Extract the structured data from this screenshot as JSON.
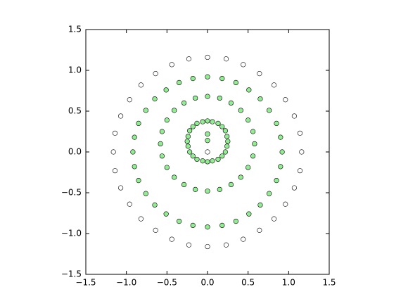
{
  "chart_data": {
    "type": "scatter",
    "xlim": [
      -1.5,
      1.5
    ],
    "ylim": [
      -1.5,
      1.5
    ],
    "xticks": [
      {
        "value": -1.5,
        "label": "−1.5"
      },
      {
        "value": -1.0,
        "label": "−1.0"
      },
      {
        "value": -0.5,
        "label": "−0.5"
      },
      {
        "value": 0,
        "label": "0.0"
      },
      0.5,
      {
        "value": 1.0,
        "label": "1.0"
      },
      1.5
    ],
    "yticks": [
      {
        "value": -1.5,
        "label": "−1.5"
      },
      {
        "value": -1.0,
        "label": "−1.0"
      },
      {
        "value": -0.5,
        "label": "−0.5"
      },
      {
        "value": 0,
        "label": "0.0"
      },
      0.5,
      {
        "value": 1.0,
        "label": "1.0"
      },
      1.5
    ],
    "series": [
      {
        "color": "#ffffff",
        "x": [
          1.16,
          1.14,
          1.07,
          0.96,
          0.82,
          0.64,
          0.44,
          0.23,
          0,
          -0.23,
          -0.44,
          -0.64,
          -0.82,
          -0.96,
          -1.07,
          -1.14,
          -1.16,
          -1.14,
          -1.07,
          -0.96,
          -0.82,
          -0.64,
          -0.44,
          -0.23,
          0,
          0.23,
          0.44,
          0.64,
          0.82,
          0.96,
          1.07,
          1.14
        ],
        "y": [
          0,
          0.23,
          0.44,
          0.64,
          0.82,
          0.96,
          1.07,
          1.14,
          1.16,
          1.14,
          1.07,
          0.96,
          0.82,
          0.64,
          0.44,
          0.23,
          0,
          -0.23,
          -0.44,
          -0.64,
          -0.82,
          -0.96,
          -1.07,
          -1.14,
          -1.16,
          -1.14,
          -1.07,
          -0.96,
          -0.82,
          -0.64,
          -0.44,
          -0.23
        ]
      },
      {
        "color": "#90ee90",
        "x": [
          0.92,
          0.9,
          0.85,
          0.76,
          0.65,
          0.51,
          0.35,
          0.18,
          0,
          -0.18,
          -0.35,
          -0.51,
          -0.65,
          -0.76,
          -0.85,
          -0.9,
          -0.92,
          -0.9,
          -0.85,
          -0.76,
          -0.65,
          -0.51,
          -0.35,
          -0.18,
          0,
          0.18,
          0.35,
          0.51,
          0.65,
          0.76,
          0.85,
          0.9
        ],
        "y": [
          0,
          0.18,
          0.35,
          0.51,
          0.65,
          0.76,
          0.85,
          0.9,
          0.92,
          0.9,
          0.85,
          0.76,
          0.65,
          0.51,
          0.35,
          0.18,
          0,
          -0.18,
          -0.35,
          -0.51,
          -0.65,
          -0.76,
          -0.85,
          -0.9,
          -0.92,
          -0.9,
          -0.85,
          -0.76,
          -0.65,
          -0.51,
          -0.35,
          -0.18
        ]
      },
      {
        "color": "#90ee90",
        "x": [
          0.58,
          0.56,
          0.5,
          0.41,
          0.29,
          0.15,
          0,
          -0.15,
          -0.29,
          -0.41,
          -0.5,
          -0.56,
          -0.58,
          -0.56,
          -0.5,
          -0.41,
          -0.29,
          -0.15,
          0,
          0.15,
          0.29,
          0.41,
          0.5,
          0.56
        ],
        "y": [
          0.1,
          0.25,
          0.39,
          0.51,
          0.6,
          0.66,
          0.68,
          0.66,
          0.6,
          0.51,
          0.39,
          0.25,
          0.1,
          -0.05,
          -0.19,
          -0.31,
          -0.4,
          -0.46,
          -0.48,
          -0.46,
          -0.4,
          -0.31,
          -0.19,
          -0.05
        ]
      },
      {
        "color": "#90ee90",
        "x": [
          0.25,
          0.24,
          0.22,
          0.18,
          0.13,
          0.06,
          0,
          -0.06,
          -0.13,
          -0.18,
          -0.22,
          -0.24,
          -0.25,
          -0.24,
          -0.22,
          -0.18,
          -0.13,
          -0.06,
          0,
          0.06,
          0.13,
          0.18,
          0.22,
          0.24,
          0,
          0
        ],
        "y": [
          0.13,
          0.19,
          0.26,
          0.31,
          0.35,
          0.37,
          0.38,
          0.37,
          0.35,
          0.31,
          0.26,
          0.19,
          0.13,
          0.07,
          0,
          -0.05,
          -0.09,
          -0.11,
          -0.12,
          -0.11,
          -0.09,
          -0.05,
          0,
          0.07,
          0.22,
          0.14
        ]
      },
      {
        "color": "#ffffff",
        "x": [
          0
        ],
        "y": [
          0
        ]
      }
    ]
  }
}
